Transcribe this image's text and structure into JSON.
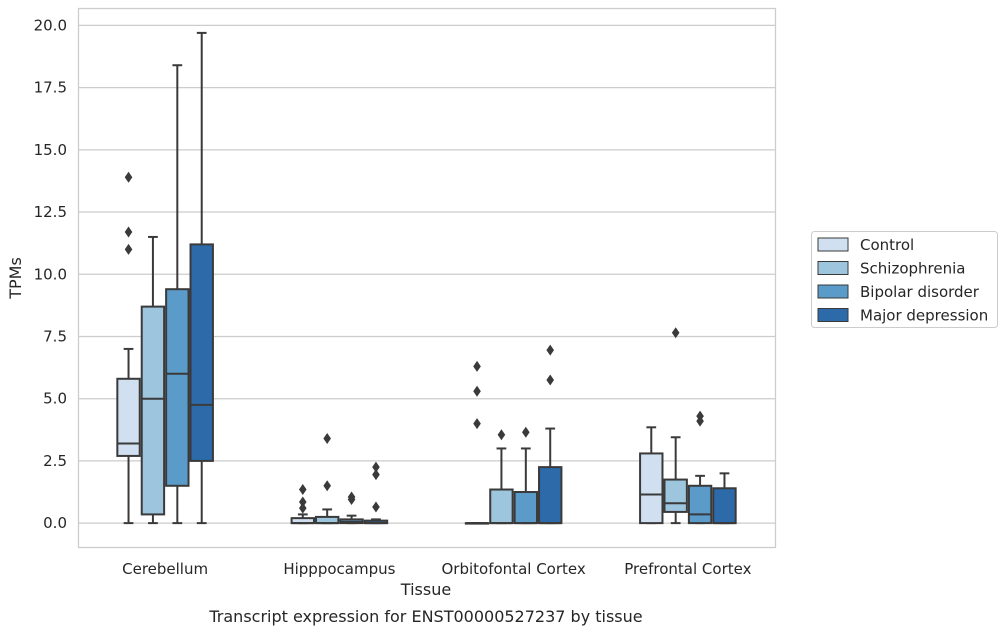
{
  "caption": "Transcript expression for ENST00000527237 by tissue",
  "chart_data": {
    "type": "box",
    "xlabel": "Tissue",
    "ylabel": "TPMs",
    "ylim": [
      -1.0,
      20.7
    ],
    "yticks": [
      "0.0",
      "2.5",
      "5.0",
      "7.5",
      "10.0",
      "12.5",
      "15.0",
      "17.5",
      "20.0"
    ],
    "grid": "horizontal",
    "legend_position": "right",
    "categories": [
      "Cerebellum",
      "Hipppocampus",
      "Orbitofontal Cortex",
      "Prefrontal Cortex"
    ],
    "series": [
      {
        "name": "Control",
        "color": "#d0e0f0",
        "boxes": [
          {
            "q1": 2.7,
            "median": 3.2,
            "q3": 5.8,
            "whislo": 0.0,
            "whishi": 7.0,
            "fliers": [
              11.0,
              11.7,
              13.9
            ]
          },
          {
            "q1": 0.0,
            "median": 0.0,
            "q3": 0.2,
            "whislo": 0.0,
            "whishi": 0.35,
            "fliers": [
              0.6,
              0.85,
              1.35
            ]
          },
          {
            "q1": 0.0,
            "median": 0.0,
            "q3": 0.0,
            "whislo": 0.0,
            "whishi": 0.0,
            "fliers": [
              4.0,
              5.3,
              6.3
            ]
          },
          {
            "q1": 0.0,
            "median": 1.15,
            "q3": 2.8,
            "whislo": 0.0,
            "whishi": 3.85,
            "fliers": []
          }
        ]
      },
      {
        "name": "Schizophrenia",
        "color": "#9dc5de",
        "boxes": [
          {
            "q1": 0.35,
            "median": 5.0,
            "q3": 8.7,
            "whislo": 0.0,
            "whishi": 11.5,
            "fliers": []
          },
          {
            "q1": 0.0,
            "median": 0.0,
            "q3": 0.25,
            "whislo": 0.0,
            "whishi": 0.55,
            "fliers": [
              1.5,
              3.4
            ]
          },
          {
            "q1": 0.0,
            "median": 0.0,
            "q3": 1.35,
            "whislo": 0.0,
            "whishi": 3.0,
            "fliers": [
              3.55
            ]
          },
          {
            "q1": 0.45,
            "median": 0.8,
            "q3": 1.75,
            "whislo": 0.0,
            "whishi": 3.45,
            "fliers": [
              7.65
            ]
          }
        ]
      },
      {
        "name": "Bipolar disorder",
        "color": "#5b9bc9",
        "boxes": [
          {
            "q1": 1.5,
            "median": 6.0,
            "q3": 9.4,
            "whislo": 0.0,
            "whishi": 18.4,
            "fliers": []
          },
          {
            "q1": 0.0,
            "median": 0.05,
            "q3": 0.15,
            "whislo": 0.0,
            "whishi": 0.3,
            "fliers": [
              0.95,
              1.05
            ]
          },
          {
            "q1": 0.0,
            "median": 0.0,
            "q3": 1.25,
            "whislo": 0.0,
            "whishi": 3.0,
            "fliers": [
              3.65
            ]
          },
          {
            "q1": 0.0,
            "median": 0.35,
            "q3": 1.5,
            "whislo": 0.0,
            "whishi": 1.9,
            "fliers": [
              4.1,
              4.3
            ]
          }
        ]
      },
      {
        "name": "Major depression",
        "color": "#2c6aaa",
        "boxes": [
          {
            "q1": 2.5,
            "median": 4.75,
            "q3": 11.2,
            "whislo": 0.0,
            "whishi": 19.7,
            "fliers": []
          },
          {
            "q1": 0.0,
            "median": 0.0,
            "q3": 0.1,
            "whislo": 0.0,
            "whishi": 0.15,
            "fliers": [
              0.65,
              1.95,
              2.25
            ]
          },
          {
            "q1": 0.0,
            "median": 0.0,
            "q3": 2.25,
            "whislo": 0.0,
            "whishi": 3.8,
            "fliers": [
              5.75,
              6.95
            ]
          },
          {
            "q1": 0.0,
            "median": 0.0,
            "q3": 1.4,
            "whislo": 0.0,
            "whishi": 2.0,
            "fliers": []
          }
        ]
      }
    ]
  }
}
